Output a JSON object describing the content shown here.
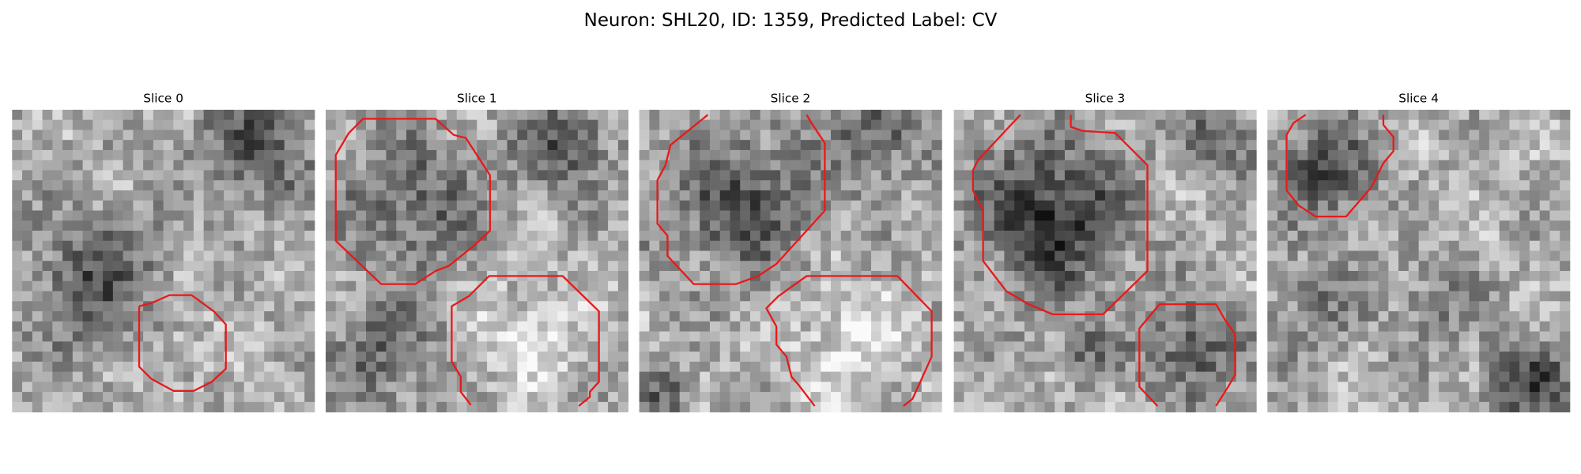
{
  "title": "Neuron: SHL20, ID: 1359, Predicted Label: CV",
  "panels": [
    {
      "title": "Slice 0"
    },
    {
      "title": "Slice 1"
    },
    {
      "title": "Slice 2"
    },
    {
      "title": "Slice 3"
    },
    {
      "title": "Slice 4"
    }
  ]
}
